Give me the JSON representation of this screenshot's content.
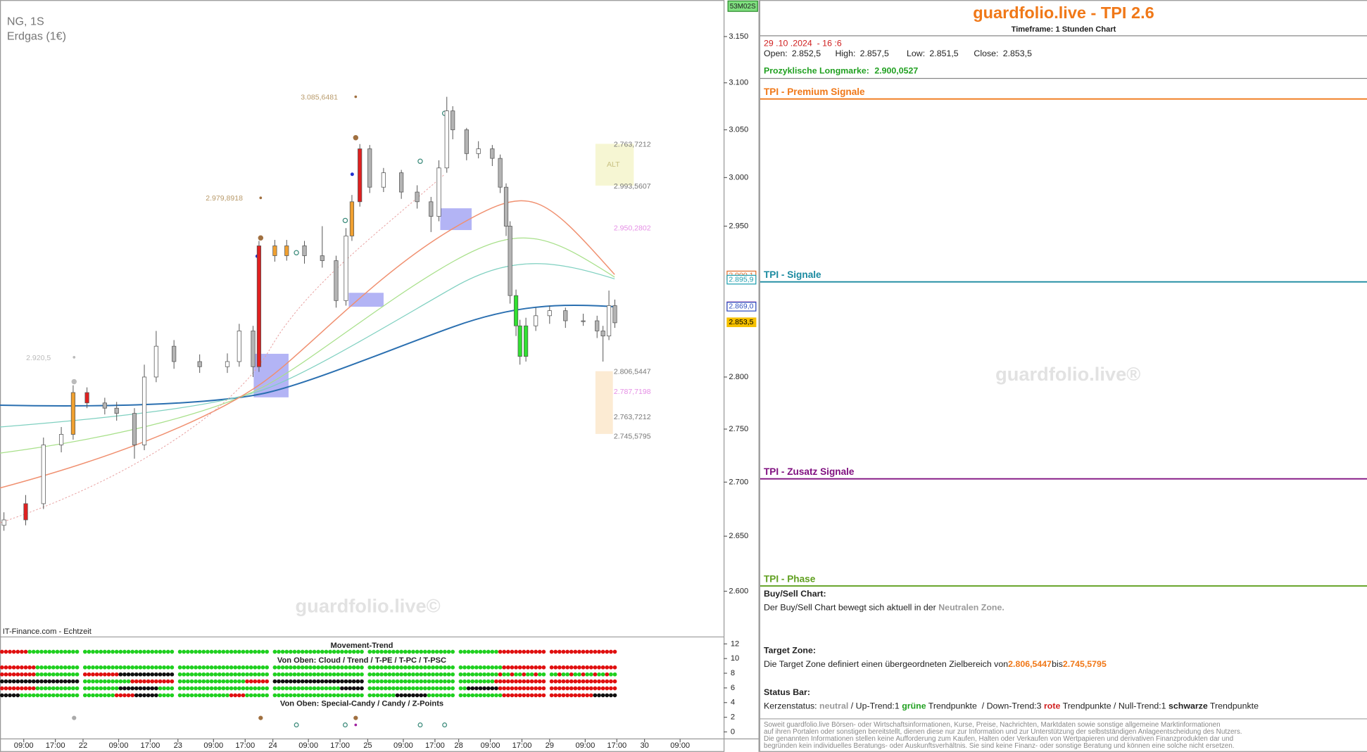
{
  "chart_data": {
    "type": "candlestick",
    "symbol": "NG, 1S",
    "instrument": "Erdgas (1€)",
    "source": "IT-Finance.com - Echtzeit",
    "badge": "53M02S",
    "watermark": "guardfolio.live©",
    "log": true,
    "x": [
      1,
      6.5,
      11,
      15.5,
      18.5,
      22,
      26.5,
      29.5,
      34,
      36.5,
      39.5,
      44,
      50.5,
      57.5,
      60.5,
      64,
      65.5,
      69.5,
      72.5,
      77,
      81.5,
      85,
      87.5,
      89,
      91,
      93.5,
      97,
      101.5,
      105.5,
      109,
      111,
      113,
      114.5,
      118,
      121,
      124.5,
      126.5,
      128,
      129,
      130.5,
      131.5,
      133,
      135.5,
      139,
      143,
      147.5,
      151,
      152.5,
      154,
      155.5
    ],
    "open": [
      2.66,
      2.665,
      2.68,
      2.735,
      2.745,
      2.785,
      2.775,
      2.77,
      2.765,
      2.735,
      2.8,
      2.83,
      2.815,
      2.81,
      2.815,
      2.845,
      2.81,
      2.93,
      2.92,
      2.93,
      2.92,
      2.915,
      2.875,
      2.94,
      2.975,
      3.03,
      2.99,
      3.005,
      2.985,
      2.975,
      2.96,
      3.01,
      3.07,
      3.05,
      3.025,
      3.03,
      3.02,
      2.99,
      2.95,
      2.88,
      2.85,
      2.82,
      2.85,
      2.86,
      2.865,
      2.855,
      2.855,
      2.845,
      2.84,
      2.87
    ],
    "high": [
      2.672,
      2.688,
      2.742,
      2.752,
      2.792,
      2.79,
      2.78,
      2.776,
      2.77,
      2.812,
      2.845,
      2.836,
      2.822,
      2.823,
      2.852,
      2.85,
      2.935,
      2.936,
      2.936,
      2.935,
      2.95,
      2.92,
      2.948,
      2.982,
      3.035,
      3.034,
      3.01,
      3.008,
      2.992,
      2.98,
      3.018,
      3.085,
      3.075,
      3.052,
      3.038,
      3.034,
      3.024,
      2.994,
      2.955,
      2.886,
      2.856,
      2.858,
      2.868,
      2.87,
      2.868,
      2.862,
      2.86,
      2.85,
      2.885,
      2.876
    ],
    "low": [
      2.655,
      2.66,
      2.675,
      2.728,
      2.74,
      2.77,
      2.764,
      2.758,
      2.722,
      2.73,
      2.795,
      2.808,
      2.804,
      2.804,
      2.81,
      2.8,
      2.805,
      2.914,
      2.915,
      2.912,
      2.908,
      2.868,
      2.87,
      2.935,
      2.97,
      2.984,
      2.985,
      2.978,
      2.968,
      2.944,
      2.955,
      3.005,
      3.04,
      3.018,
      3.02,
      3.012,
      2.984,
      2.94,
      2.872,
      2.84,
      2.812,
      2.815,
      2.845,
      2.852,
      2.848,
      2.85,
      2.838,
      2.815,
      2.836,
      2.848
    ],
    "close": [
      2.665,
      2.68,
      2.735,
      2.745,
      2.785,
      2.775,
      2.77,
      2.765,
      2.735,
      2.8,
      2.83,
      2.815,
      2.81,
      2.815,
      2.845,
      2.81,
      2.93,
      2.92,
      2.93,
      2.92,
      2.915,
      2.875,
      2.94,
      2.975,
      3.03,
      2.99,
      3.005,
      2.985,
      2.975,
      2.96,
      3.01,
      3.07,
      3.05,
      3.025,
      3.03,
      3.02,
      2.99,
      2.95,
      2.88,
      2.85,
      2.82,
      2.85,
      2.86,
      2.865,
      2.855,
      2.855,
      2.845,
      2.84,
      2.87,
      2.853
    ],
    "colors": [
      "#ffffff",
      "#e02020",
      "#ffffff",
      "#ffffff",
      "#f0a030",
      "#e02020",
      "#b4b4b4",
      "#b4b4b4",
      "#b4b4b4",
      "#ffffff",
      "#ffffff",
      "#b4b4b4",
      "#b4b4b4",
      "#ffffff",
      "#ffffff",
      "#b4b4b4",
      "#e02020",
      "#f0a030",
      "#f0a030",
      "#b4b4b4",
      "#b4b4b4",
      "#b4b4b4",
      "#ffffff",
      "#f0a030",
      "#e02020",
      "#b4b4b4",
      "#ffffff",
      "#b4b4b4",
      "#b4b4b4",
      "#b4b4b4",
      "#ffffff",
      "#ffffff",
      "#b4b4b4",
      "#b4b4b4",
      "#ffffff",
      "#b4b4b4",
      "#b4b4b4",
      "#b4b4b4",
      "#b4b4b4",
      "#30e030",
      "#30e030",
      "#30e030",
      "#ffffff",
      "#ffffff",
      "#b4b4b4",
      "#b4b4b4",
      "#b4b4b4",
      "#b4b4b4",
      "#ffffff",
      "#b4b4b4"
    ],
    "xlim": [
      0,
      183
    ],
    "xticks": [
      {
        "value": 6,
        "label": "09:00"
      },
      {
        "value": 14,
        "label": "17:00"
      },
      {
        "value": 21,
        "label": "22"
      },
      {
        "value": 30,
        "label": "09:00"
      },
      {
        "value": 38,
        "label": "17:00"
      },
      {
        "value": 45,
        "label": "23"
      },
      {
        "value": 54,
        "label": "09:00"
      },
      {
        "value": 62,
        "label": "17:00"
      },
      {
        "value": 69,
        "label": "24"
      },
      {
        "value": 78,
        "label": "09:00"
      },
      {
        "value": 86,
        "label": "17:00"
      },
      {
        "value": 93,
        "label": "25"
      },
      {
        "value": 102,
        "label": "09:00"
      },
      {
        "value": 110,
        "label": "17:00"
      },
      {
        "value": 116,
        "label": "28"
      },
      {
        "value": 124,
        "label": "09:00"
      },
      {
        "value": 132,
        "label": "17:00"
      },
      {
        "value": 139,
        "label": "29"
      },
      {
        "value": 148,
        "label": "09:00"
      },
      {
        "value": 156,
        "label": "17:00"
      },
      {
        "value": 163,
        "label": "30"
      },
      {
        "value": 172,
        "label": "09:00"
      }
    ],
    "ylim": [
      2.56,
      3.19
    ],
    "yticks": [
      {
        "value": 3.15,
        "label": "3.150"
      },
      {
        "value": 3.1,
        "label": "3.100"
      },
      {
        "value": 3.05,
        "label": "3.050"
      },
      {
        "value": 3.0,
        "label": "3.000"
      },
      {
        "value": 2.95,
        "label": "2.950"
      },
      {
        "value": 2.8,
        "label": "2.800"
      },
      {
        "value": 2.75,
        "label": "2.750"
      },
      {
        "value": 2.7,
        "label": "2.700"
      },
      {
        "value": 2.65,
        "label": "2.650"
      },
      {
        "value": 2.6,
        "label": "2.600"
      }
    ],
    "price_tags": [
      {
        "value": 2.9001,
        "label": "2.900,1",
        "color": "#e07030"
      },
      {
        "value": 2.8959,
        "label": "2.895,9",
        "color": "#20a0b0"
      },
      {
        "value": 2.8693,
        "label": "2.869,3",
        "color": "#902090"
      },
      {
        "value": 2.869,
        "label": "2.869,0",
        "color": "#3050c0"
      },
      {
        "value": 2.8535,
        "label": "2.853,5",
        "color": "#f5c000"
      }
    ],
    "annotations": [
      {
        "text": "3.085,6481",
        "color": "#b89a6a"
      },
      {
        "text": "2.979,8918",
        "color": "#b89a6a"
      },
      {
        "text": "2.920,5",
        "color": "#bbbbbb"
      },
      {
        "text": "2.763,7212",
        "color": "#777777"
      },
      {
        "text": "ALT",
        "color": "#c8c080"
      },
      {
        "text": "2.993,5607",
        "color": "#777777"
      },
      {
        "text": "2.950,2802",
        "color": "#e58ee5"
      },
      {
        "text": "2.806,5447",
        "color": "#777777"
      },
      {
        "text": "2.787,7198",
        "color": "#e58ee5"
      },
      {
        "text": "2.763,7212",
        "color": "#777777"
      },
      {
        "text": "2.745,5795",
        "color": "#777777"
      }
    ],
    "indicator": {
      "title": "Movement-Trend",
      "subtitle": "Von Oben: Cloud / Trend / T-PE / T-PC / T-PSC",
      "subtitle2": "Von Oben: Special-Candy / Candy / Z-Points",
      "ylim": [
        0,
        12
      ],
      "yticks": [
        12,
        10,
        8,
        6,
        4,
        2,
        0
      ]
    }
  },
  "panel": {
    "title": "guardfolio.live - TPI 2.6",
    "timeframe": "Timeframe: 1 Stunden Chart",
    "datetime": "29 .10 .2024  - 16 :6",
    "ohlc": [
      {
        "label": "Open:",
        "value": "2.852,5"
      },
      {
        "label": "High:",
        "value": "2.857,5"
      },
      {
        "label": "Low:",
        "value": "2.851,5"
      },
      {
        "label": "Close:",
        "value": "2.853,5"
      }
    ],
    "longmark_label": "Prozyklische Longmarke:",
    "longmark_value": "2.900,0527",
    "sections": [
      "TPI - Premium Signale",
      "TPI - Signale",
      "TPI - Zusatz Signale",
      "TPI - Phase"
    ],
    "watermark": "guardfolio.live®",
    "buysell": {
      "heading": "Buy/Sell Chart:",
      "text": "Der Buy/Sell Chart bewegt sich aktuell in der ",
      "zone": "Neutralen Zone."
    },
    "target": {
      "heading": "Target Zone:",
      "text": "Die Target Zone definiert einen übergeordneten Zielbereich von",
      "from": "2.806,5447",
      "mid": "bis",
      "to": "2.745,5795"
    },
    "status": {
      "heading": "Status Bar:",
      "parts": [
        "Kerzenstatus: ",
        "neutral",
        " / Up-Trend:1 ",
        "grüne",
        " Trendpunkte  / Down-Trend:3 ",
        "rote",
        " Trendpunkte / Null-Trend:1 ",
        "schwarze",
        " Trendpunkte"
      ]
    },
    "disclaimer": [
      "Soweit guardfolio.live Börsen- oder Wirtschaftsinformationen, Kurse, Preise, Nachrichten, Marktdaten sowie sonstige allgemeine Marktinformationen",
      "auf ihren Portalen oder sonstigen bereitstellt, dienen diese nur zur Information und zur Unterstützung der selbstständigen Anlageentscheidung des Nutzers.",
      "Die genannten Informationen stellen keine Aufforderung zum Kaufen, Halten oder Verkaufen von Wertpapieren und derivativen Finanzprodukten dar und",
      "begründen kein individuelles Beratungs- oder Auskunftsverhältnis. Sie sind keine Finanz- oder sonstige Beratung und können eine solche nicht ersetzen."
    ]
  }
}
